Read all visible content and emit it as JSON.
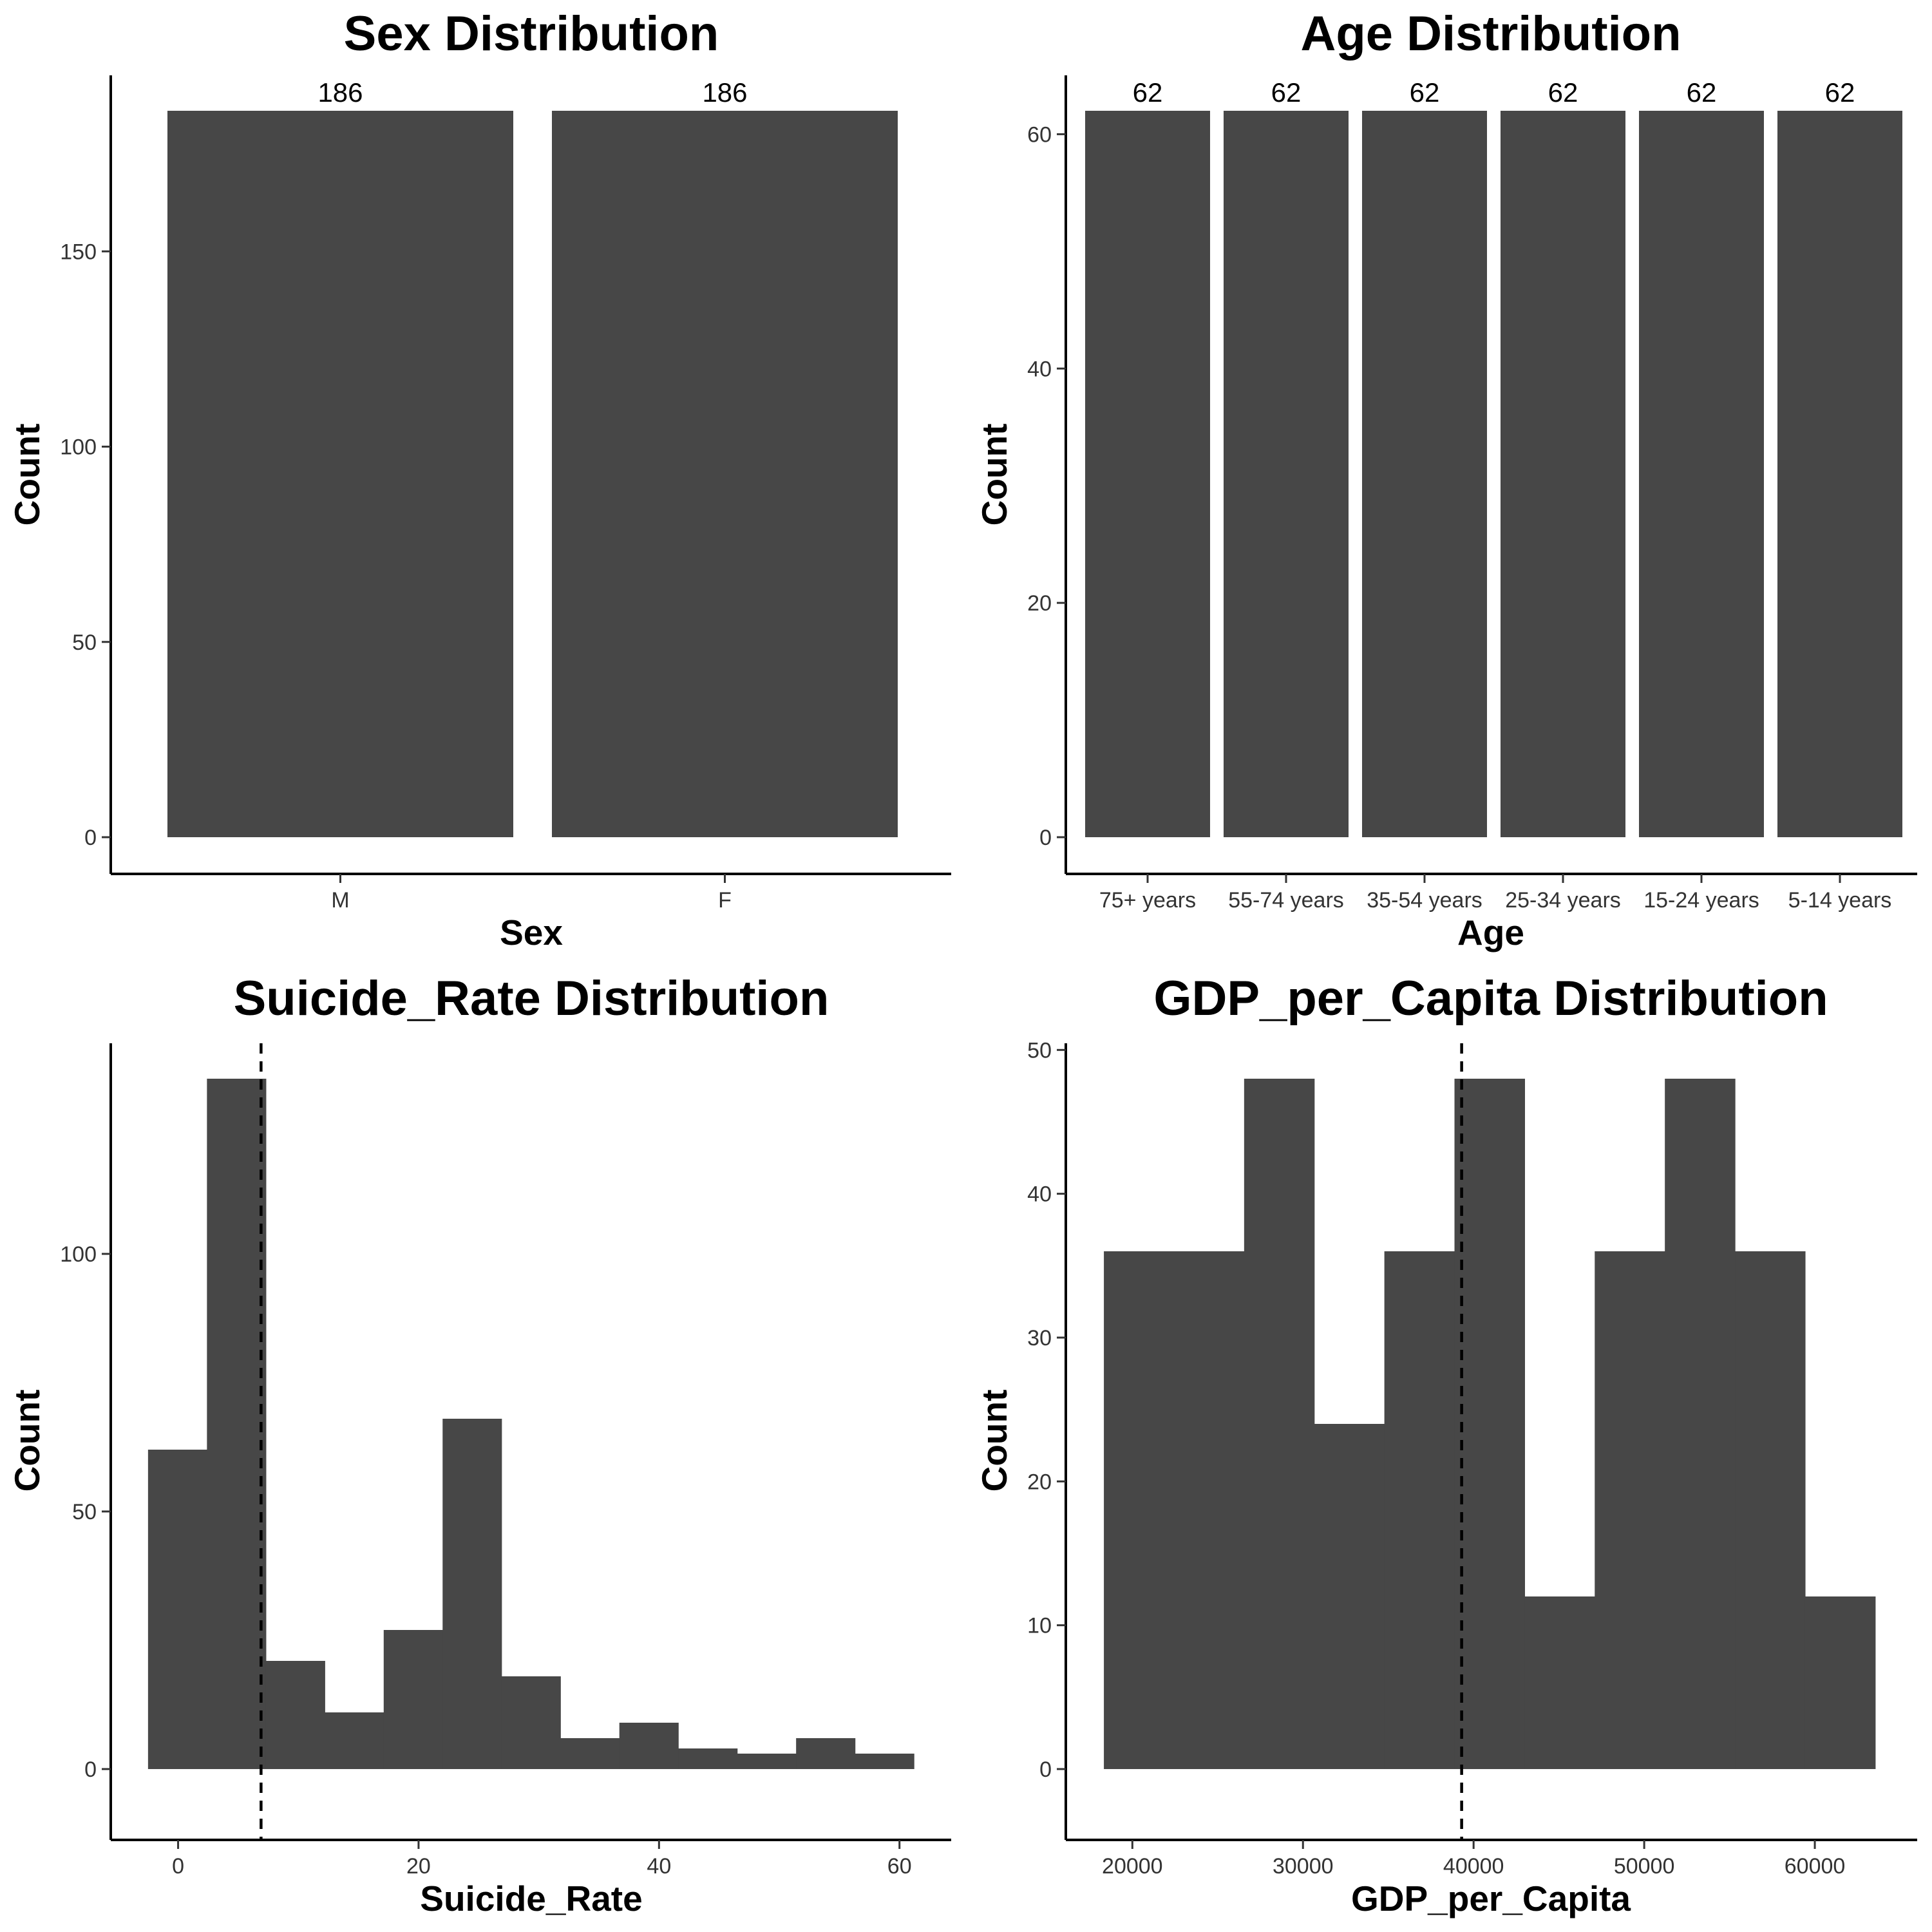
{
  "colors": {
    "bar": "#474747",
    "axis": "#000000",
    "tick_text": "#333333"
  },
  "chart_data": [
    {
      "type": "bar",
      "title": "Sex Distribution",
      "xlabel": "Sex",
      "ylabel": "Count",
      "categories": [
        "M",
        "F"
      ],
      "values": [
        186,
        186
      ],
      "data_labels": [
        "186",
        "186"
      ],
      "ylim": [
        0,
        186
      ],
      "yticks": [
        0,
        50,
        100,
        150
      ],
      "grid": false
    },
    {
      "type": "bar",
      "title": "Age Distribution",
      "xlabel": "Age",
      "ylabel": "Count",
      "categories": [
        "75+ years",
        "55-74 years",
        "35-54 years",
        "25-34 years",
        "15-24 years",
        "5-14 years"
      ],
      "values": [
        62,
        62,
        62,
        62,
        62,
        62
      ],
      "data_labels": [
        "62",
        "62",
        "62",
        "62",
        "62",
        "62"
      ],
      "ylim": [
        0,
        62
      ],
      "yticks": [
        0,
        20,
        40,
        60
      ],
      "grid": false
    },
    {
      "type": "histogram",
      "title": "Suicide_Rate Distribution",
      "xlabel": "Suicide_Rate",
      "ylabel": "Count",
      "bins": [
        {
          "x0": -2.5,
          "x1": 2.4,
          "count": 62
        },
        {
          "x0": 2.4,
          "x1": 7.3,
          "count": 134
        },
        {
          "x0": 7.3,
          "x1": 12.2,
          "count": 21
        },
        {
          "x0": 12.2,
          "x1": 17.1,
          "count": 11
        },
        {
          "x0": 17.1,
          "x1": 22.0,
          "count": 27
        },
        {
          "x0": 22.0,
          "x1": 26.9,
          "count": 68
        },
        {
          "x0": 26.9,
          "x1": 31.8,
          "count": 18
        },
        {
          "x0": 31.8,
          "x1": 36.7,
          "count": 6
        },
        {
          "x0": 36.7,
          "x1": 41.6,
          "count": 9
        },
        {
          "x0": 41.6,
          "x1": 46.5,
          "count": 4
        },
        {
          "x0": 46.5,
          "x1": 51.4,
          "count": 3
        },
        {
          "x0": 51.4,
          "x1": 56.3,
          "count": 6
        },
        {
          "x0": 56.3,
          "x1": 61.2,
          "count": 3
        }
      ],
      "reference_line": {
        "x": 6.9,
        "style": "dashed"
      },
      "xlim": [
        -5.6,
        64.3
      ],
      "ylim": [
        0,
        134
      ],
      "xticks": [
        0,
        20,
        40,
        60
      ],
      "yticks": [
        0,
        50,
        100
      ],
      "grid": false
    },
    {
      "type": "histogram",
      "title": "GDP_per_Capita Distribution",
      "xlabel": "GDP_per_Capita",
      "ylabel": "Count",
      "bins": [
        {
          "x0": 18330,
          "x1": 26550,
          "count": 36
        },
        {
          "x0": 26550,
          "x1": 30660,
          "count": 48
        },
        {
          "x0": 30660,
          "x1": 34770,
          "count": 24
        },
        {
          "x0": 34770,
          "x1": 38880,
          "count": 36
        },
        {
          "x0": 38880,
          "x1": 42990,
          "count": 48
        },
        {
          "x0": 42990,
          "x1": 47100,
          "count": 12
        },
        {
          "x0": 47100,
          "x1": 51210,
          "count": 36
        },
        {
          "x0": 51210,
          "x1": 55320,
          "count": 48
        },
        {
          "x0": 55320,
          "x1": 59430,
          "count": 36
        },
        {
          "x0": 59430,
          "x1": 63540,
          "count": 12
        }
      ],
      "reference_line": {
        "x": 39300,
        "style": "dashed"
      },
      "xlim": [
        16100,
        66000
      ],
      "ylim": [
        0,
        48
      ],
      "xticks": [
        20000,
        30000,
        40000,
        50000,
        60000
      ],
      "yticks": [
        0,
        10,
        20,
        30,
        40,
        50
      ],
      "grid": false
    }
  ]
}
